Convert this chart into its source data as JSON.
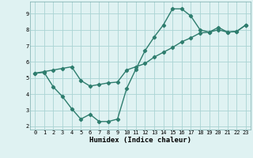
{
  "line1_x": [
    0,
    1,
    2,
    3,
    4,
    5,
    6,
    7,
    8,
    9,
    10,
    11,
    12,
    13,
    14,
    15,
    16,
    17,
    18,
    19,
    20,
    21,
    22,
    23
  ],
  "line1_y": [
    5.3,
    5.35,
    4.45,
    3.85,
    3.1,
    2.45,
    2.75,
    2.3,
    2.3,
    2.45,
    4.35,
    5.55,
    6.7,
    7.55,
    8.3,
    9.3,
    9.3,
    8.85,
    8.0,
    7.85,
    8.15,
    7.85,
    7.9,
    8.3
  ],
  "line2_x": [
    0,
    1,
    2,
    3,
    4,
    5,
    6,
    7,
    8,
    9,
    10,
    11,
    12,
    13,
    14,
    15,
    16,
    17,
    18,
    19,
    20,
    21,
    22,
    23
  ],
  "line2_y": [
    5.3,
    5.4,
    5.5,
    5.6,
    5.7,
    4.85,
    4.5,
    4.6,
    4.7,
    4.75,
    5.5,
    5.7,
    5.9,
    6.3,
    6.6,
    6.9,
    7.25,
    7.5,
    7.8,
    7.85,
    8.0,
    7.85,
    7.9,
    8.3
  ],
  "line_color": "#2e7d6e",
  "bg_color": "#dff2f2",
  "grid_color": "#aad4d4",
  "xlabel": "Humidex (Indice chaleur)",
  "ylim": [
    1.8,
    9.75
  ],
  "xlim": [
    -0.5,
    23.5
  ],
  "yticks": [
    2,
    3,
    4,
    5,
    6,
    7,
    8,
    9
  ],
  "xticks": [
    0,
    1,
    2,
    3,
    4,
    5,
    6,
    7,
    8,
    9,
    10,
    11,
    12,
    13,
    14,
    15,
    16,
    17,
    18,
    19,
    20,
    21,
    22,
    23
  ],
  "marker": "D",
  "marker_size": 2.2,
  "line_width": 1.0
}
